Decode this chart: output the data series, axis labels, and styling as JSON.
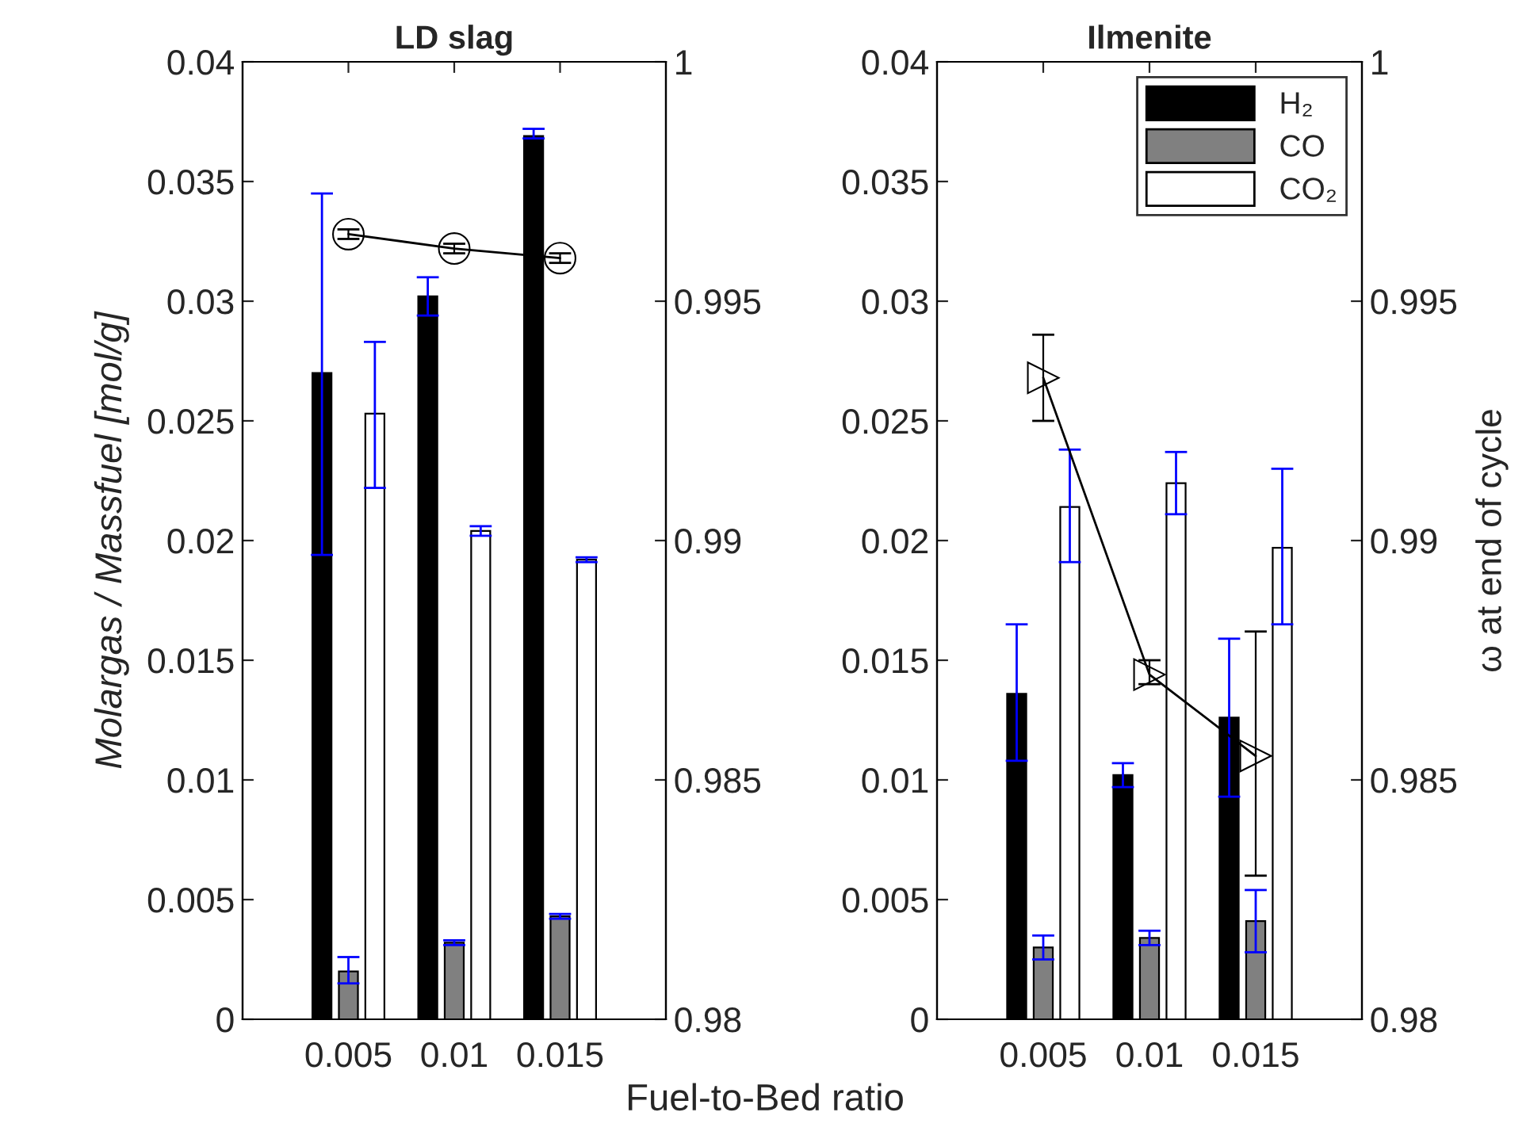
{
  "chart_data": [
    {
      "type": "bar",
      "title": "LD slag",
      "xlabel": "Fuel-to-Bed ratio",
      "ylabel": "Molargas / Massfuel [mol/g]",
      "categories": [
        "0.005",
        "0.01",
        "0.015"
      ],
      "ylim": [
        0,
        0.04
      ],
      "yticks": [
        0,
        0.005,
        0.01,
        0.015,
        0.02,
        0.025,
        0.03,
        0.035,
        0.04
      ],
      "y2lim": [
        0.98,
        1
      ],
      "y2ticks": [
        0.98,
        0.985,
        0.99,
        0.995,
        1
      ],
      "grid": false,
      "legend": false,
      "series": [
        {
          "color": "#000000",
          "values": [
            0.027,
            0.0302,
            0.0369
          ],
          "errors": [
            [
              0.0194,
              0.0345
            ],
            [
              0.0294,
              0.031
            ],
            [
              0.0368,
              0.0372
            ]
          ]
        },
        {
          "color": "#808080",
          "values": [
            0.002,
            0.0032,
            0.0043
          ],
          "errors": [
            [
              0.0015,
              0.0026
            ],
            [
              0.0031,
              0.0033
            ],
            [
              0.0042,
              0.0044
            ]
          ]
        },
        {
          "color": "#ffffff",
          "values": [
            0.0253,
            0.0204,
            0.0192
          ],
          "errors": [
            [
              0.0222,
              0.0283
            ],
            [
              0.0202,
              0.0206
            ],
            [
              0.0191,
              0.0193
            ]
          ]
        },
        {
          "type": "line",
          "axis": "y2",
          "color": "#000000",
          "marker": "circle",
          "values": [
            0.9964,
            0.9961,
            0.9959
          ],
          "errors": [
            [
              0.9963,
              0.9965
            ],
            [
              0.996,
              0.9962
            ],
            [
              0.9958,
              0.996
            ]
          ]
        }
      ]
    },
    {
      "type": "bar",
      "title": "Ilmenite",
      "y2label": "ω at end of cycle",
      "categories": [
        "0.005",
        "0.01",
        "0.015"
      ],
      "ylim": [
        0,
        0.04
      ],
      "yticks": [
        0,
        0.005,
        0.01,
        0.015,
        0.02,
        0.025,
        0.03,
        0.035,
        0.04
      ],
      "y2lim": [
        0.98,
        1
      ],
      "y2ticks": [
        0.98,
        0.985,
        0.99,
        0.995,
        1
      ],
      "grid": false,
      "legend": "top right",
      "series": [
        {
          "name": "H₂",
          "color": "#000000",
          "values": [
            0.0136,
            0.0102,
            0.0126
          ],
          "errors": [
            [
              0.0108,
              0.0165
            ],
            [
              0.0097,
              0.0107
            ],
            [
              0.0093,
              0.0159
            ]
          ]
        },
        {
          "name": "CO",
          "color": "#808080",
          "values": [
            0.003,
            0.0034,
            0.0041
          ],
          "errors": [
            [
              0.0025,
              0.0035
            ],
            [
              0.0031,
              0.0037
            ],
            [
              0.0028,
              0.0054
            ]
          ]
        },
        {
          "name": "CO₂",
          "color": "#ffffff",
          "values": [
            0.0214,
            0.0224,
            0.0197
          ],
          "errors": [
            [
              0.0191,
              0.0238
            ],
            [
              0.0211,
              0.0237
            ],
            [
              0.0165,
              0.023
            ]
          ]
        },
        {
          "type": "line",
          "axis": "y2",
          "color": "#000000",
          "marker": "triangle",
          "values": [
            0.9934,
            0.9872,
            0.9855
          ],
          "errors": [
            [
              0.9925,
              0.9943
            ],
            [
              0.987,
              0.9875
            ],
            [
              0.983,
              0.9881
            ]
          ]
        }
      ]
    }
  ]
}
